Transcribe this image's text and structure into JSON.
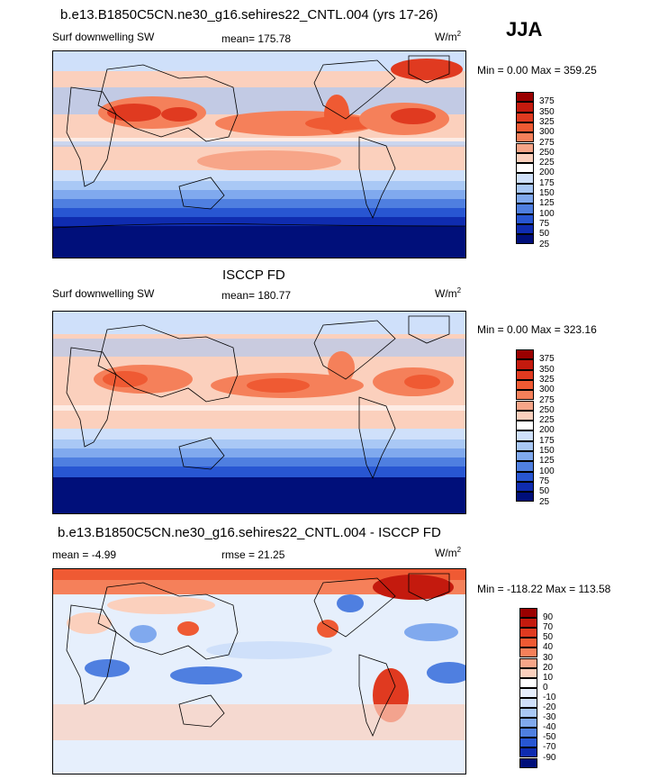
{
  "season": "JJA",
  "units_base": "W/m",
  "units_exp": "2",
  "chart_data": [
    {
      "type": "heatmap",
      "title": "b.e13.B1850C5CN.ne30_g16.sehires22_CNTL.004 (yrs 17-26)",
      "left_label": "Surf downwelling SW",
      "center_label": "mean= 175.78",
      "minmax": "Min =   0.00 Max = 359.25",
      "levels": [
        "375",
        "350",
        "325",
        "300",
        "275",
        "250",
        "225",
        "200",
        "175",
        "150",
        "125",
        "100",
        "75",
        "50",
        "25"
      ],
      "colors": [
        "#9a0000",
        "#c41a0e",
        "#e03a20",
        "#ef5a33",
        "#f5805a",
        "#f7a588",
        "#fbd0bd",
        "#ffffff",
        "#cfe0fa",
        "#a9c8f5",
        "#80a9ee",
        "#4f7fe0",
        "#2856d2",
        "#0f2cb0",
        "#000f7a"
      ],
      "mean": 175.78,
      "min": 0.0,
      "max": 359.25
    },
    {
      "type": "heatmap",
      "title": "ISCCP FD",
      "left_label": "Surf downwelling SW",
      "center_label": "mean= 180.77",
      "minmax": "Min =   0.00 Max = 323.16",
      "levels": [
        "375",
        "350",
        "325",
        "300",
        "275",
        "250",
        "225",
        "200",
        "175",
        "150",
        "125",
        "100",
        "75",
        "50",
        "25"
      ],
      "colors": [
        "#9a0000",
        "#c41a0e",
        "#e03a20",
        "#ef5a33",
        "#f5805a",
        "#f7a588",
        "#fbd0bd",
        "#ffffff",
        "#cfe0fa",
        "#a9c8f5",
        "#80a9ee",
        "#4f7fe0",
        "#2856d2",
        "#0f2cb0",
        "#000f7a"
      ],
      "mean": 180.77,
      "min": 0.0,
      "max": 323.16
    },
    {
      "type": "heatmap",
      "title": "b.e13.B1850C5CN.ne30_g16.sehires22_CNTL.004 - ISCCP FD",
      "left_label": "mean =  -4.99",
      "center_label": "rmse =  21.25",
      "minmax": "Min = -118.22 Max = 113.58",
      "levels": [
        "90",
        "70",
        "50",
        "40",
        "30",
        "20",
        "10",
        "0",
        "-10",
        "-20",
        "-30",
        "-40",
        "-50",
        "-70",
        "-90"
      ],
      "colors": [
        "#9a0000",
        "#c41a0e",
        "#e03a20",
        "#ef5a33",
        "#f5805a",
        "#f7a588",
        "#fbd0bd",
        "#ffffff",
        "#e6effc",
        "#cfe0fa",
        "#a9c8f5",
        "#80a9ee",
        "#4f7fe0",
        "#2856d2",
        "#0f2cb0",
        "#000f7a"
      ],
      "mean": -4.99,
      "rmse": 21.25,
      "min": -118.22,
      "max": 113.58
    }
  ]
}
